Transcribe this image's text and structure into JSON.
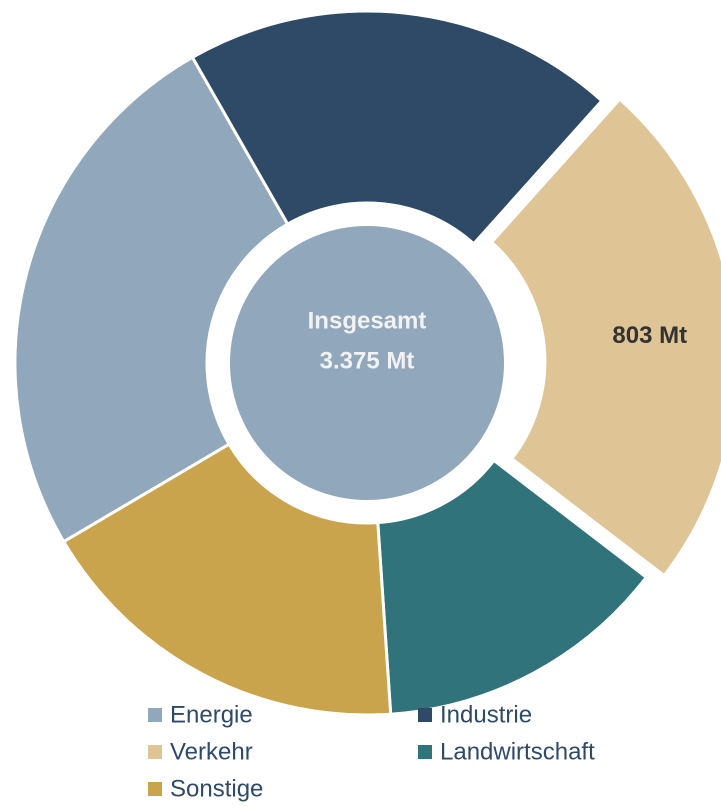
{
  "chart_data": {
    "type": "donut",
    "categories": [
      "Energie",
      "Industrie",
      "Verkehr",
      "Landwirtschaft",
      "Sonstige"
    ],
    "values": [
      851,
      671,
      803,
      456,
      594
    ],
    "value_labels": [
      null,
      null,
      "803 Mt",
      null,
      null
    ],
    "colors": [
      "#91a7bb",
      "#2e4a66",
      "#dfc496",
      "#31737b",
      "#c9a44c"
    ],
    "center_label": [
      "Insgesamt",
      "3.375 Mt"
    ],
    "exploded": "Verkehr",
    "legend": "bottom"
  }
}
